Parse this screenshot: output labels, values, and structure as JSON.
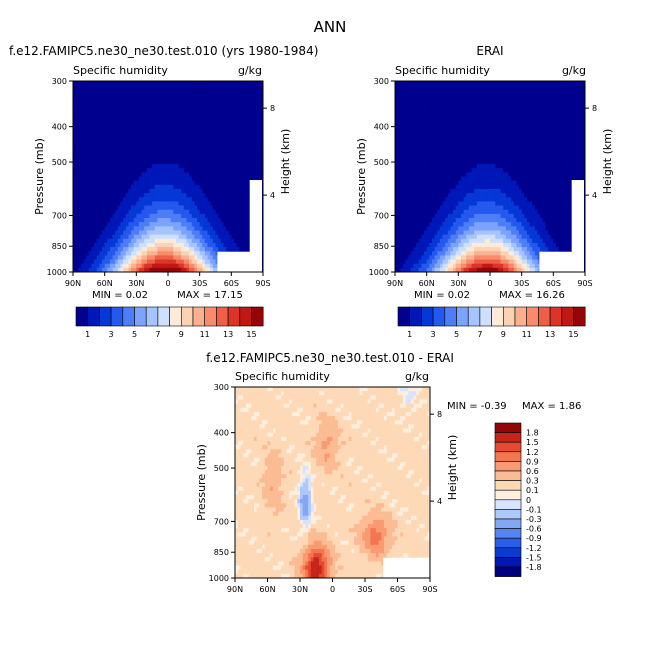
{
  "page_title": "ANN",
  "palette_abs": [
    "#00008f",
    "#0017b8",
    "#0538d6",
    "#2558ec",
    "#4d7ef8",
    "#7ba3ff",
    "#a6c4ff",
    "#cee0ff",
    "#fdebd8",
    "#fcd2b4",
    "#fcb08f",
    "#f98b6c",
    "#ef5f48",
    "#dc3428",
    "#c01812",
    "#96040a"
  ],
  "palette_diff": [
    "#00007f",
    "#0017b0",
    "#0a3bd0",
    "#2a5ee6",
    "#5783f0",
    "#83a6f6",
    "#aec8fb",
    "#d6e4fd",
    "#fdeedd",
    "#fdd9b7",
    "#fcbc93",
    "#fa9a72",
    "#f27650",
    "#e34b32",
    "#c82418",
    "#920606"
  ],
  "chart_data": [
    {
      "type": "heatmap",
      "title": "f.e12.FAMIPC5.ne30_ne30.test.010 (yrs 1980-1984)",
      "variable": "Specific humidity",
      "units": "g/kg",
      "ylabel": "Pressure (mb)",
      "ylabel_right": "Height (km)",
      "x_ticks": [
        "90N",
        "60N",
        "30N",
        "0",
        "30S",
        "60S",
        "90S"
      ],
      "y_ticks": [
        "300",
        "400",
        "500",
        "700",
        "850",
        "1000"
      ],
      "y_ticks_right": [
        "8",
        "4"
      ],
      "min_text": "MIN =    0.02",
      "max_text": "MAX =   17.15",
      "colorbar_labels": [
        "1",
        "3",
        "5",
        "7",
        "9",
        "11",
        "13",
        "15"
      ],
      "peak": 17.15
    },
    {
      "type": "heatmap",
      "title": "ERAI",
      "variable": "Specific humidity",
      "units": "g/kg",
      "ylabel": "Pressure (mb)",
      "ylabel_right": "Height (km)",
      "x_ticks": [
        "90N",
        "60N",
        "30N",
        "0",
        "30S",
        "60S",
        "90S"
      ],
      "y_ticks": [
        "300",
        "400",
        "500",
        "700",
        "850",
        "1000"
      ],
      "y_ticks_right": [
        "8",
        "4"
      ],
      "min_text": "MIN =    0.02",
      "max_text": "MAX =   16.26",
      "colorbar_labels": [
        "1",
        "3",
        "5",
        "7",
        "9",
        "11",
        "13",
        "15"
      ],
      "peak": 16.26
    },
    {
      "type": "heatmap",
      "title": "f.e12.FAMIPC5.ne30_ne30.test.010 - ERAI",
      "variable": "Specific humidity",
      "units": "g/kg",
      "ylabel": "Pressure (mb)",
      "ylabel_right": "Height (km)",
      "x_ticks": [
        "90N",
        "60N",
        "30N",
        "0",
        "30S",
        "60S",
        "90S"
      ],
      "y_ticks": [
        "300",
        "400",
        "500",
        "700",
        "850",
        "1000"
      ],
      "y_ticks_right": [
        "8",
        "4"
      ],
      "min_text": "MIN =   -0.39",
      "max_text": "MAX =    1.86",
      "colorbar_labels": [
        "1.8",
        "1.5",
        "1.2",
        "0.9",
        "0.6",
        "0.3",
        "0.1",
        "0",
        "-0.1",
        "-0.3",
        "-0.6",
        "-0.9",
        "-1.2",
        "-1.5",
        "-1.8"
      ]
    }
  ]
}
